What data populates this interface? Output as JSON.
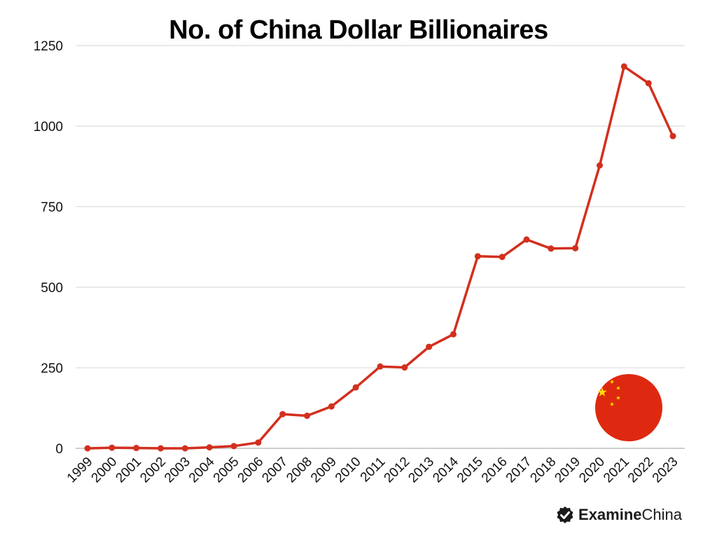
{
  "chart_data": {
    "type": "line",
    "title": "No. of China Dollar Billionaires",
    "xlabel": "",
    "ylabel": "",
    "ylim": [
      0,
      1250
    ],
    "yticks": [
      0,
      250,
      500,
      750,
      1000,
      1250
    ],
    "grid": true,
    "categories": [
      "1999",
      "2000",
      "2001",
      "2002",
      "2003",
      "2004",
      "2005",
      "2006",
      "2007",
      "2008",
      "2009",
      "2010",
      "2011",
      "2012",
      "2013",
      "2014",
      "2015",
      "2016",
      "2017",
      "2018",
      "2019",
      "2020",
      "2021",
      "2022",
      "2023"
    ],
    "series": [
      {
        "color": "#d32f1e",
        "values": [
          0,
          2,
          1,
          0,
          0,
          3,
          7,
          18,
          106,
          101,
          130,
          189,
          254,
          251,
          315,
          354,
          596,
          594,
          648,
          620,
          621,
          878,
          1185,
          1133,
          969
        ]
      }
    ]
  },
  "decor": {
    "flag_icon": "china-flag-icon",
    "flag_red": "#de2910",
    "flag_yellow": "#ffde00"
  },
  "brand": {
    "icon": "check-badge-icon",
    "name_bold": "Examine",
    "name_rest": "China"
  }
}
